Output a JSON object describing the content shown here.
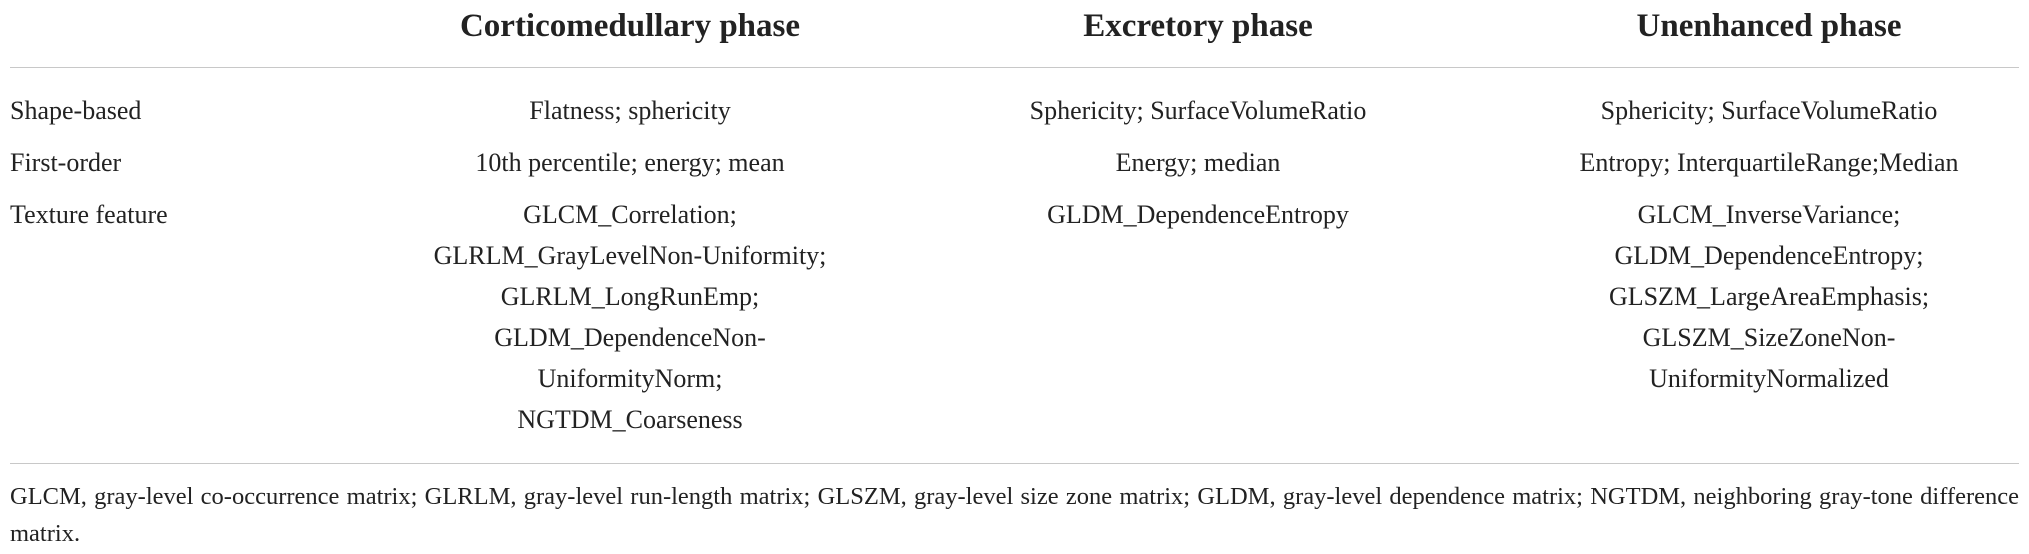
{
  "table": {
    "header": [
      "Corticomedullary phase",
      "Excretory phase",
      "Unenhanced phase"
    ],
    "rows": [
      {
        "label": "Shape-based",
        "cells": [
          [
            "Flatness; sphericity"
          ],
          [
            "Sphericity; SurfaceVolumeRatio"
          ],
          [
            "Sphericity; SurfaceVolumeRatio"
          ]
        ]
      },
      {
        "label": "First-order",
        "cells": [
          [
            "10th percentile; energy; mean"
          ],
          [
            "Energy; median"
          ],
          [
            "Entropy; InterquartileRange;Median"
          ]
        ]
      },
      {
        "label": "Texture feature",
        "cells": [
          [
            "GLCM_Correlation;",
            "GLRLM_GrayLevelNon-Uniformity;",
            "GLRLM_LongRunEmp;",
            "GLDM_DependenceNon-",
            "UniformityNorm;",
            "NGTDM_Coarseness"
          ],
          [
            "GLDM_DependenceEntropy"
          ],
          [
            "GLCM_InverseVariance;",
            "GLDM_DependenceEntropy;",
            "GLSZM_LargeAreaEmphasis;",
            "GLSZM_SizeZoneNon-",
            "UniformityNormalized"
          ]
        ]
      }
    ],
    "footnote": "GLCM, gray-level co-occurrence matrix; GLRLM, gray-level run-length matrix; GLSZM, gray-level size zone matrix; GLDM, gray-level dependence matrix; NGTDM, neighboring gray-tone difference matrix."
  }
}
